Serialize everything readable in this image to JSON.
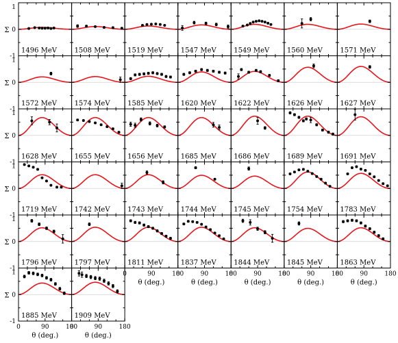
{
  "chart_data": {
    "type": "scatter",
    "xlabel": "θ (deg.)",
    "ylabel": "Σ",
    "xlim": [
      0,
      180
    ],
    "ylim": [
      -1,
      1
    ],
    "x_tick_labels": [
      "0",
      "90",
      "180"
    ],
    "y_tick_labels": [
      "1",
      "0",
      "-1"
    ],
    "grid": false,
    "colors": {
      "model": "#e8141b",
      "data": "#000000"
    },
    "panels": [
      {
        "energy": "1496 MeV",
        "peak": 0.07,
        "points": [
          [
            35,
            0.03,
            0.02
          ],
          [
            55,
            0.06,
            0.02
          ],
          [
            70,
            0.05,
            0.02
          ],
          [
            80,
            0.04,
            0.02
          ],
          [
            90,
            0.04,
            0.02
          ],
          [
            100,
            0.05,
            0.02
          ],
          [
            110,
            0.03,
            0.02
          ],
          [
            120,
            0.05,
            0.02
          ]
        ]
      },
      {
        "energy": "1508 MeV",
        "peak": 0.1,
        "points": [
          [
            20,
            0.12,
            0.05
          ],
          [
            50,
            0.12,
            0.03
          ],
          [
            80,
            0.1,
            0.02
          ],
          [
            110,
            0.07,
            0.03
          ],
          [
            140,
            0.06,
            0.03
          ],
          [
            170,
            0.04,
            0.03
          ]
        ]
      },
      {
        "energy": "1519 MeV",
        "peak": 0.12,
        "points": [
          [
            60,
            0.15,
            0.02
          ],
          [
            75,
            0.18,
            0.02
          ],
          [
            90,
            0.19,
            0.02
          ],
          [
            105,
            0.2,
            0.02
          ],
          [
            120,
            0.18,
            0.02
          ],
          [
            135,
            0.15,
            0.02
          ]
        ]
      },
      {
        "energy": "1547 MeV",
        "peak": 0.16,
        "points": [
          [
            15,
            0.05,
            0.09
          ],
          [
            55,
            0.25,
            0.05
          ],
          [
            95,
            0.22,
            0.05
          ],
          [
            130,
            0.18,
            0.05
          ],
          [
            170,
            0.1,
            0.06
          ]
        ]
      },
      {
        "energy": "1549 MeV",
        "peak": 0.18,
        "points": [
          [
            40,
            0.12,
            0.02
          ],
          [
            55,
            0.16,
            0.02
          ],
          [
            65,
            0.22,
            0.02
          ],
          [
            75,
            0.27,
            0.02
          ],
          [
            85,
            0.3,
            0.02
          ],
          [
            95,
            0.32,
            0.02
          ],
          [
            105,
            0.3,
            0.02
          ],
          [
            115,
            0.27,
            0.02
          ],
          [
            125,
            0.23,
            0.02
          ],
          [
            135,
            0.18,
            0.02
          ]
        ]
      },
      {
        "energy": "1560 MeV",
        "peak": 0.18,
        "points": [
          [
            60,
            0.22,
            0.17
          ],
          [
            90,
            0.38,
            0.06
          ]
        ]
      },
      {
        "energy": "1571 MeV",
        "peak": 0.19,
        "points": [
          [
            110,
            0.3,
            0.05
          ]
        ]
      },
      {
        "energy": "1572 MeV",
        "peak": 0.2,
        "points": [
          [
            110,
            0.33,
            0.05
          ]
        ]
      },
      {
        "energy": "1574 MeV",
        "peak": 0.21,
        "points": [
          [
            165,
            0.1,
            0.1
          ]
        ]
      },
      {
        "energy": "1585 MeV",
        "peak": 0.22,
        "points": [
          [
            20,
            0.14,
            0.04
          ],
          [
            35,
            0.28,
            0.04
          ],
          [
            50,
            0.3,
            0.04
          ],
          [
            65,
            0.32,
            0.04
          ],
          [
            80,
            0.34,
            0.04
          ],
          [
            95,
            0.36,
            0.04
          ],
          [
            110,
            0.33,
            0.04
          ],
          [
            125,
            0.3,
            0.04
          ],
          [
            140,
            0.22,
            0.04
          ],
          [
            155,
            0.2,
            0.04
          ]
        ]
      },
      {
        "energy": "1620 MeV",
        "peak": 0.38,
        "points": [
          [
            20,
            0.3,
            0.04
          ],
          [
            40,
            0.36,
            0.04
          ],
          [
            60,
            0.42,
            0.04
          ],
          [
            80,
            0.48,
            0.04
          ],
          [
            100,
            0.45,
            0.04
          ],
          [
            120,
            0.42,
            0.04
          ],
          [
            140,
            0.38,
            0.04
          ],
          [
            160,
            0.35,
            0.04
          ]
        ]
      },
      {
        "energy": "1622 MeV",
        "peak": 0.4,
        "points": [
          [
            25,
            0.22,
            0.1
          ],
          [
            35,
            0.48,
            0.04
          ],
          [
            60,
            0.38,
            0.04
          ],
          [
            85,
            0.45,
            0.04
          ],
          [
            100,
            0.4,
            0.04
          ],
          [
            130,
            0.26,
            0.04
          ],
          [
            160,
            0.06,
            0.04
          ]
        ]
      },
      {
        "energy": "1626 MeV",
        "peak": 0.55,
        "points": [
          [
            100,
            0.62,
            0.07
          ]
        ]
      },
      {
        "energy": "1627 MeV",
        "peak": 0.58,
        "points": [
          [
            110,
            0.58,
            0.05
          ]
        ]
      },
      {
        "energy": "1628 MeV",
        "peak": 0.65,
        "points": [
          [
            45,
            0.55,
            0.15
          ],
          [
            105,
            0.5,
            0.1
          ],
          [
            130,
            0.28,
            0.15
          ]
        ]
      },
      {
        "energy": "1655 MeV",
        "peak": 0.65,
        "points": [
          [
            20,
            0.58,
            0.03
          ],
          [
            40,
            0.56,
            0.03
          ],
          [
            60,
            0.52,
            0.03
          ],
          [
            80,
            0.47,
            0.03
          ],
          [
            100,
            0.4,
            0.03
          ],
          [
            120,
            0.33,
            0.03
          ],
          [
            140,
            0.25,
            0.03
          ],
          [
            160,
            0.12,
            0.03
          ]
        ]
      },
      {
        "energy": "1656 MeV",
        "peak": 0.65,
        "points": [
          [
            20,
            0.42,
            0.08
          ],
          [
            35,
            0.38,
            0.08
          ],
          [
            55,
            0.6,
            0.06
          ],
          [
            85,
            0.45,
            0.06
          ],
          [
            110,
            0.37,
            0.05
          ],
          [
            135,
            0.32,
            0.04
          ]
        ]
      },
      {
        "energy": "1685 MeV",
        "peak": 0.65,
        "points": [
          [
            120,
            0.4,
            0.09
          ],
          [
            140,
            0.3,
            0.09
          ]
        ]
      },
      {
        "energy": "1686 MeV",
        "peak": 0.7,
        "points": [
          [
            90,
            0.55,
            0.13
          ],
          [
            115,
            0.28,
            0.05
          ]
        ]
      },
      {
        "energy": "1689 MeV",
        "peak": 0.7,
        "points": [
          [
            20,
            0.85,
            0.04
          ],
          [
            35,
            0.78,
            0.04
          ],
          [
            50,
            0.68,
            0.04
          ],
          [
            65,
            0.55,
            0.04
          ],
          [
            75,
            0.62,
            0.04
          ],
          [
            90,
            0.58,
            0.1
          ],
          [
            110,
            0.4,
            0.04
          ],
          [
            130,
            0.2,
            0.04
          ],
          [
            150,
            0.12,
            0.04
          ],
          [
            165,
            0.05,
            0.04
          ]
        ]
      },
      {
        "energy": "1691 MeV",
        "peak": 0.68,
        "points": [
          [
            60,
            0.78,
            0.2
          ]
        ]
      },
      {
        "energy": "1719 MeV",
        "peak": 0.5,
        "points": [
          [
            20,
            0.9,
            0.03
          ],
          [
            35,
            0.85,
            0.03
          ],
          [
            50,
            0.8,
            0.03
          ],
          [
            65,
            0.72,
            0.03
          ],
          [
            80,
            0.4,
            0.03
          ],
          [
            95,
            0.28,
            0.03
          ],
          [
            110,
            0.12,
            0.03
          ],
          [
            130,
            0.05,
            0.03
          ],
          [
            145,
            0.05,
            0.03
          ]
        ]
      },
      {
        "energy": "1742 MeV",
        "peak": 0.5,
        "points": [
          [
            170,
            0.1,
            0.1
          ]
        ]
      },
      {
        "energy": "1743 MeV",
        "peak": 0.5,
        "points": [
          [
            75,
            0.6,
            0.06
          ],
          [
            130,
            0.23,
            0.06
          ]
        ]
      },
      {
        "energy": "1744 MeV",
        "peak": 0.48,
        "points": [
          [
            60,
            0.78,
            0.04
          ],
          [
            125,
            0.35,
            0.03
          ]
        ]
      },
      {
        "energy": "1745 MeV",
        "peak": 0.45,
        "points": [
          [
            60,
            0.75,
            0.06
          ]
        ]
      },
      {
        "energy": "1754 MeV",
        "peak": 0.6,
        "points": [
          [
            20,
            0.55,
            0.03
          ],
          [
            35,
            0.62,
            0.03
          ],
          [
            50,
            0.7,
            0.03
          ],
          [
            65,
            0.72,
            0.03
          ],
          [
            80,
            0.65,
            0.03
          ],
          [
            95,
            0.56,
            0.03
          ],
          [
            110,
            0.45,
            0.03
          ],
          [
            125,
            0.35,
            0.03
          ],
          [
            140,
            0.2,
            0.03
          ],
          [
            155,
            0.08,
            0.03
          ]
        ]
      },
      {
        "energy": "1783 MeV",
        "peak": 0.55,
        "points": [
          [
            35,
            0.55,
            0.03
          ],
          [
            50,
            0.78,
            0.03
          ],
          [
            65,
            0.82,
            0.03
          ],
          [
            80,
            0.73,
            0.03
          ],
          [
            95,
            0.68,
            0.03
          ],
          [
            110,
            0.55,
            0.03
          ],
          [
            125,
            0.44,
            0.03
          ],
          [
            140,
            0.3,
            0.03
          ],
          [
            155,
            0.18,
            0.03
          ],
          [
            170,
            0.1,
            0.03
          ]
        ]
      },
      {
        "energy": "1796 MeV",
        "peak": 0.5,
        "points": [
          [
            45,
            0.78,
            0.05
          ],
          [
            70,
            0.65,
            0.05
          ],
          [
            95,
            0.5,
            0.05
          ],
          [
            120,
            0.38,
            0.05
          ],
          [
            150,
            0.1,
            0.16
          ]
        ]
      },
      {
        "energy": "1797 MeV",
        "peak": 0.52,
        "points": [
          [
            60,
            0.65,
            0.05
          ]
        ]
      },
      {
        "energy": "1811 MeV",
        "peak": 0.52,
        "points": [
          [
            20,
            0.78,
            0.04
          ],
          [
            35,
            0.72,
            0.04
          ],
          [
            50,
            0.7,
            0.04
          ],
          [
            65,
            0.62,
            0.04
          ],
          [
            80,
            0.56,
            0.04
          ],
          [
            95,
            0.5,
            0.04
          ],
          [
            110,
            0.4,
            0.04
          ],
          [
            125,
            0.3,
            0.04
          ],
          [
            140,
            0.2,
            0.04
          ],
          [
            155,
            0.12,
            0.04
          ]
        ]
      },
      {
        "energy": "1837 MeV",
        "peak": 0.52,
        "points": [
          [
            20,
            0.66,
            0.03
          ],
          [
            35,
            0.76,
            0.03
          ],
          [
            50,
            0.75,
            0.03
          ],
          [
            65,
            0.72,
            0.03
          ],
          [
            80,
            0.65,
            0.03
          ],
          [
            95,
            0.55,
            0.03
          ],
          [
            110,
            0.45,
            0.03
          ],
          [
            125,
            0.32,
            0.03
          ],
          [
            140,
            0.22,
            0.03
          ],
          [
            155,
            0.1,
            0.03
          ]
        ]
      },
      {
        "energy": "1844 MeV",
        "peak": 0.5,
        "points": [
          [
            40,
            0.78,
            0.06
          ],
          [
            65,
            0.72,
            0.1
          ],
          [
            90,
            0.48,
            0.06
          ],
          [
            115,
            0.35,
            0.06
          ],
          [
            140,
            0.12,
            0.15
          ]
        ]
      },
      {
        "energy": "1845 MeV",
        "peak": 0.48,
        "points": [
          [
            50,
            0.68,
            0.06
          ]
        ]
      },
      {
        "energy": "1863 MeV",
        "peak": 0.5,
        "points": [
          [
            20,
            0.75,
            0.04
          ],
          [
            35,
            0.78,
            0.04
          ],
          [
            50,
            0.8,
            0.04
          ],
          [
            65,
            0.78,
            0.04
          ],
          [
            80,
            0.7,
            0.04
          ],
          [
            95,
            0.58,
            0.04
          ],
          [
            110,
            0.48,
            0.04
          ],
          [
            125,
            0.35,
            0.04
          ],
          [
            140,
            0.22,
            0.04
          ],
          [
            155,
            0.1,
            0.04
          ]
        ]
      },
      {
        "energy": "1885 MeV",
        "peak": 0.42,
        "points": [
          [
            20,
            0.68,
            0.05
          ],
          [
            35,
            0.82,
            0.05
          ],
          [
            50,
            0.8,
            0.05
          ],
          [
            65,
            0.76,
            0.05
          ],
          [
            80,
            0.72,
            0.05
          ],
          [
            95,
            0.63,
            0.05
          ],
          [
            110,
            0.56,
            0.05
          ],
          [
            125,
            0.4,
            0.05
          ],
          [
            140,
            0.22,
            0.05
          ],
          [
            155,
            0.05,
            0.05
          ]
        ]
      },
      {
        "energy": "1909 MeV",
        "peak": 0.45,
        "points": [
          [
            25,
            0.8,
            0.1
          ],
          [
            35,
            0.75,
            0.1
          ],
          [
            50,
            0.7,
            0.06
          ],
          [
            65,
            0.66,
            0.06
          ],
          [
            80,
            0.62,
            0.06
          ],
          [
            95,
            0.6,
            0.06
          ],
          [
            110,
            0.52,
            0.06
          ],
          [
            125,
            0.42,
            0.06
          ],
          [
            140,
            0.32,
            0.06
          ],
          [
            155,
            0.12,
            0.06
          ]
        ]
      }
    ]
  }
}
